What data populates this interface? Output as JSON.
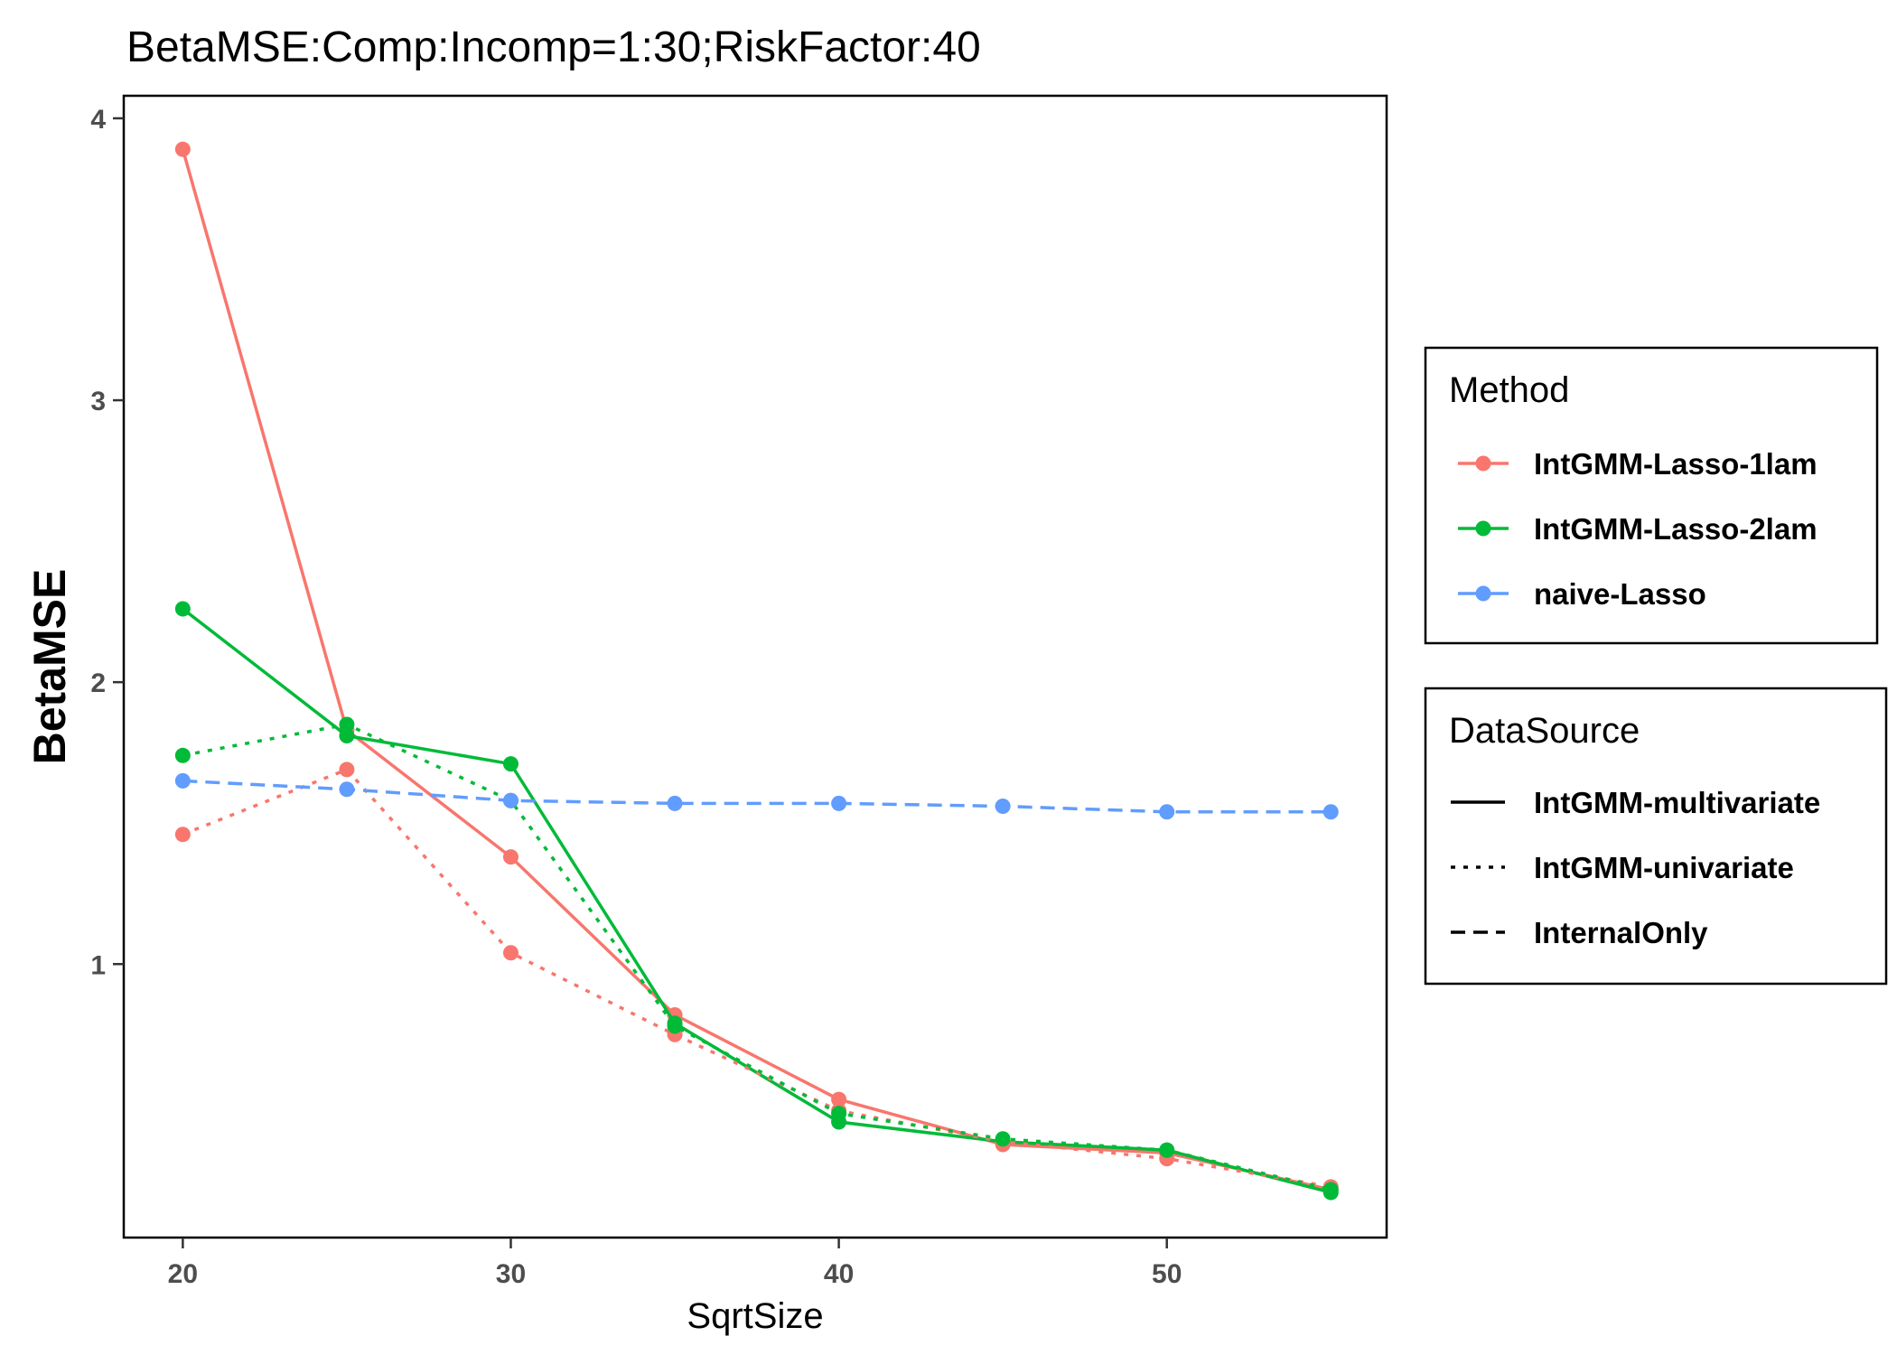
{
  "chart_data": {
    "type": "line",
    "title": "BetaMSE:Comp:Incomp=1:30;RiskFactor:40",
    "xlabel": "SqrtSize",
    "ylabel": "BetaMSE",
    "x": [
      20,
      25,
      30,
      35,
      40,
      45,
      50,
      55
    ],
    "xlim": [
      18.2,
      56.7
    ],
    "ylim": [
      0.03,
      4.08
    ],
    "xticks": [
      20,
      30,
      40,
      50
    ],
    "yticks": [
      1,
      2,
      3,
      4
    ],
    "grid": false,
    "legend_position": "right",
    "colors": {
      "IntGMM-Lasso-1lam": "#F8766D",
      "IntGMM-Lasso-2lam": "#00BA38",
      "naive-Lasso": "#619CFF"
    },
    "series": [
      {
        "method": "IntGMM-Lasso-1lam",
        "source": "IntGMM-multivariate",
        "x": [
          20,
          25,
          30,
          35,
          40,
          45,
          50,
          55
        ],
        "values": [
          3.89,
          1.83,
          1.38,
          0.82,
          0.52,
          0.36,
          0.33,
          0.2
        ]
      },
      {
        "method": "IntGMM-Lasso-2lam",
        "source": "IntGMM-multivariate",
        "x": [
          20,
          25,
          30,
          35,
          40,
          45,
          50,
          55
        ],
        "values": [
          2.26,
          1.81,
          1.71,
          0.79,
          0.44,
          0.37,
          0.34,
          0.19
        ]
      },
      {
        "method": "IntGMM-Lasso-1lam",
        "source": "IntGMM-univariate",
        "x": [
          20,
          25,
          30,
          35,
          40,
          45,
          50,
          55
        ],
        "values": [
          1.46,
          1.69,
          1.04,
          0.75,
          0.48,
          0.37,
          0.31,
          0.21
        ]
      },
      {
        "method": "IntGMM-Lasso-2lam",
        "source": "IntGMM-univariate",
        "x": [
          20,
          25,
          30,
          35,
          40,
          45,
          50,
          55
        ],
        "values": [
          1.74,
          1.85,
          1.58,
          0.78,
          0.47,
          0.38,
          0.34,
          0.2
        ]
      },
      {
        "method": "naive-Lasso",
        "source": "InternalOnly",
        "x": [
          20,
          25,
          30,
          35,
          40,
          45,
          50,
          55
        ],
        "values": [
          1.65,
          1.62,
          1.58,
          1.57,
          1.57,
          1.56,
          1.54,
          1.54
        ]
      }
    ],
    "legends": [
      {
        "title": "Method",
        "kind": "color",
        "entries": [
          "IntGMM-Lasso-1lam",
          "IntGMM-Lasso-2lam",
          "naive-Lasso"
        ]
      },
      {
        "title": "DataSource",
        "kind": "linetype",
        "entries": [
          "IntGMM-multivariate",
          "IntGMM-univariate",
          "InternalOnly"
        ],
        "styles": [
          "solid",
          "dotted",
          "dashed"
        ]
      }
    ]
  }
}
